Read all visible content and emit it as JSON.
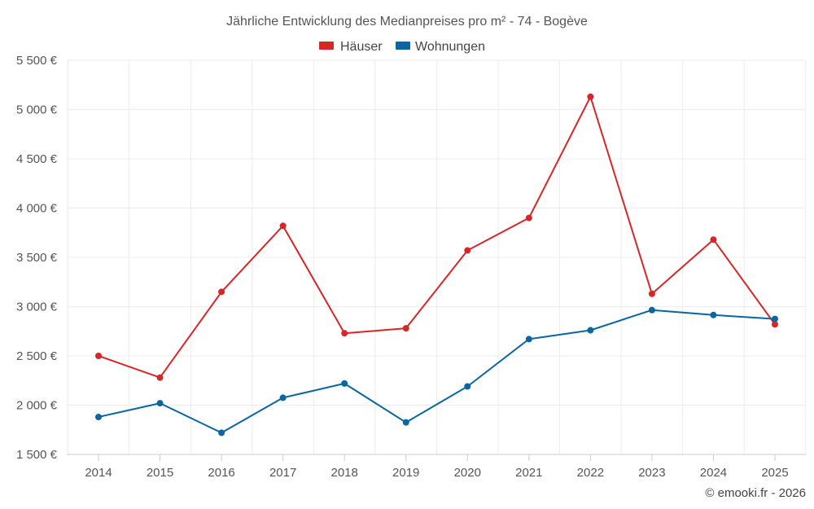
{
  "chart_data": {
    "type": "line",
    "title": "Jährliche Entwicklung des Medianpreises pro m² - 74 - Bogève",
    "categories": [
      "2014",
      "2015",
      "2016",
      "2017",
      "2018",
      "2019",
      "2020",
      "2021",
      "2022",
      "2023",
      "2024",
      "2025"
    ],
    "series": [
      {
        "name": "Häuser",
        "color": "#d62728",
        "values": [
          2500,
          2280,
          3150,
          3820,
          2730,
          2780,
          3570,
          3900,
          5130,
          3130,
          3680,
          2820
        ]
      },
      {
        "name": "Wohnungen",
        "color": "#0a66a0",
        "values": [
          1880,
          2020,
          1720,
          2075,
          2220,
          1825,
          2190,
          2670,
          2760,
          2965,
          2915,
          2875
        ]
      }
    ],
    "ylim": [
      1500,
      5500
    ],
    "yticks": [
      1500,
      2000,
      2500,
      3000,
      3500,
      4000,
      4500,
      5000,
      5500
    ],
    "ytick_labels": [
      "1 500 €",
      "2 000 €",
      "2 500 €",
      "3 000 €",
      "3 500 €",
      "4 000 €",
      "4 500 €",
      "5 000 €",
      "5 500 €"
    ],
    "xlabel": "",
    "ylabel": "",
    "grid": true,
    "legend_position": "top-center"
  },
  "credit": "© emooki.fr - 2026"
}
